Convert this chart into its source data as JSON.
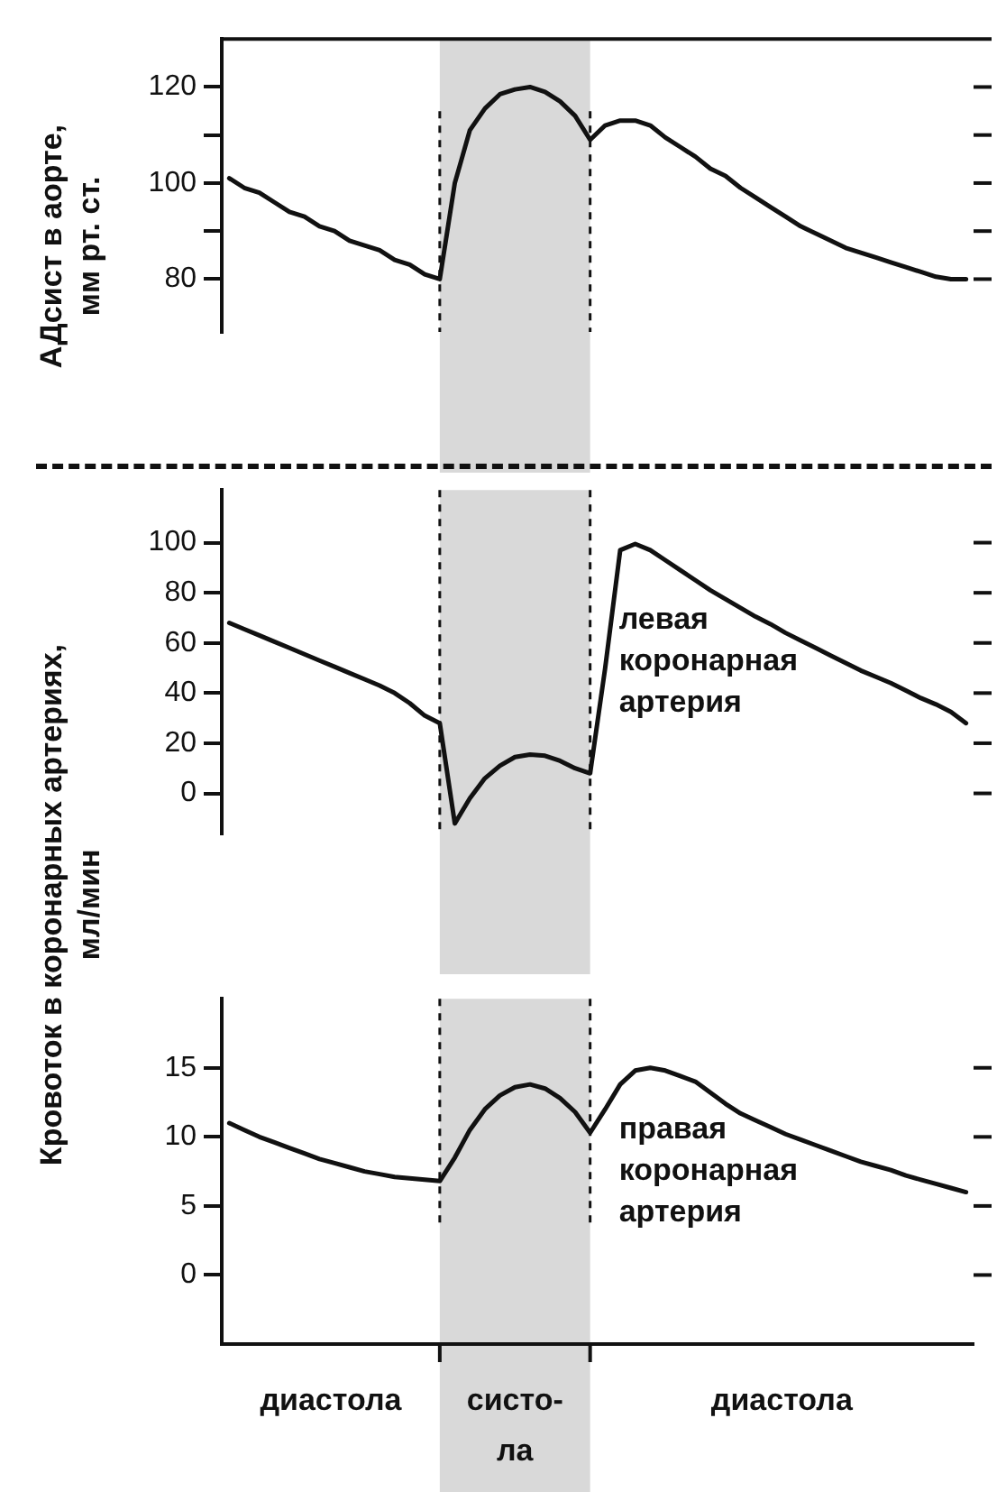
{
  "chart_data": [
    {
      "type": "line",
      "marker": "none",
      "ylabel": "АДсист в аорте, мм рт. ст.",
      "categories": [
        null,
        null,
        null,
        null,
        null,
        null,
        null,
        null,
        null,
        null,
        null,
        null,
        null,
        null,
        null,
        null,
        null,
        null,
        null,
        null,
        null,
        null,
        null,
        null,
        null,
        null,
        null,
        null,
        null,
        null,
        null,
        null,
        null,
        null,
        null,
        null,
        null,
        null,
        null,
        null,
        null,
        null,
        null,
        null,
        null,
        null,
        null,
        null,
        null,
        null
      ],
      "ylim": [
        69,
        130
      ],
      "yticks": [
        80,
        {
          "value": 90,
          "label": null
        },
        100,
        {
          "value": 110,
          "label": null
        },
        120
      ],
      "series": [
        {
          "color": "#111111",
          "values": [
            101,
            99,
            98,
            96,
            94,
            93,
            91,
            90,
            88,
            87,
            86,
            84,
            83,
            81,
            80,
            100,
            111,
            115.5,
            118.5,
            119.5,
            120,
            119,
            117,
            114,
            109,
            112,
            113,
            113,
            112,
            109.5,
            107.5,
            105.5,
            103,
            101.5,
            99,
            97,
            95,
            93,
            91,
            89.5,
            88,
            86.5,
            85.5,
            84.5,
            83.5,
            82.5,
            81.5,
            80.5,
            80,
            80
          ]
        }
      ]
    },
    {
      "type": "line",
      "marker": "none",
      "ylabel": "Кровоток в коронарных артериях, мл/мин",
      "categories": [
        null,
        null,
        null,
        null,
        null,
        null,
        null,
        null,
        null,
        null,
        null,
        null,
        null,
        null,
        null,
        null,
        null,
        null,
        null,
        null,
        null,
        null,
        null,
        null,
        null,
        null,
        null,
        null,
        null,
        null,
        null,
        null,
        null,
        null,
        null,
        null,
        null,
        null,
        null,
        null,
        null,
        null,
        null,
        null,
        null,
        null,
        null,
        null,
        null,
        null
      ],
      "ylim": [
        -16,
        121
      ],
      "yticks": [
        0,
        20,
        40,
        60,
        80,
        100
      ],
      "series": [
        {
          "name": "левая коронарная артерия",
          "color": "#111111",
          "values": [
            68,
            65.5,
            63,
            60.5,
            58,
            55.5,
            53,
            50.5,
            48,
            45.5,
            43,
            40,
            36,
            31,
            28,
            -12,
            -2,
            6,
            11,
            14.5,
            15.5,
            15,
            13,
            10,
            8,
            50,
            97,
            99.5,
            97,
            93,
            89,
            85,
            81,
            77.5,
            74,
            70.5,
            67.5,
            64,
            61,
            58,
            55,
            52,
            49,
            46.5,
            44,
            41,
            38,
            35.5,
            32.5,
            28
          ]
        }
      ]
    },
    {
      "type": "line",
      "marker": "none",
      "categories": [
        null,
        null,
        null,
        null,
        null,
        null,
        null,
        null,
        null,
        null,
        null,
        null,
        null,
        null,
        null,
        null,
        null,
        null,
        null,
        null,
        null,
        null,
        null,
        null,
        null,
        null,
        null,
        null,
        null,
        null,
        null,
        null,
        null,
        null,
        null,
        null,
        null,
        null,
        null,
        null,
        null,
        null,
        null,
        null,
        null,
        null,
        null,
        null,
        null,
        null
      ],
      "ylim": [
        -5,
        20
      ],
      "yticks": [
        0,
        5,
        10,
        15
      ],
      "series": [
        {
          "name": "правая коронарная артерия",
          "color": "#111111",
          "values": [
            11,
            10.5,
            10,
            9.6,
            9.2,
            8.8,
            8.4,
            8.1,
            7.8,
            7.5,
            7.3,
            7.1,
            7,
            6.9,
            6.8,
            8.5,
            10.5,
            12,
            13,
            13.6,
            13.8,
            13.5,
            12.8,
            11.8,
            10.3,
            12,
            13.8,
            14.8,
            15,
            14.8,
            14.4,
            14,
            13.2,
            12.4,
            11.7,
            11.2,
            10.7,
            10.2,
            9.8,
            9.4,
            9,
            8.6,
            8.2,
            7.9,
            7.6,
            7.2,
            6.9,
            6.6,
            6.3,
            6
          ]
        }
      ],
      "annotations": [
        "диастола",
        "систо-ла",
        "диастола"
      ]
    }
  ]
}
